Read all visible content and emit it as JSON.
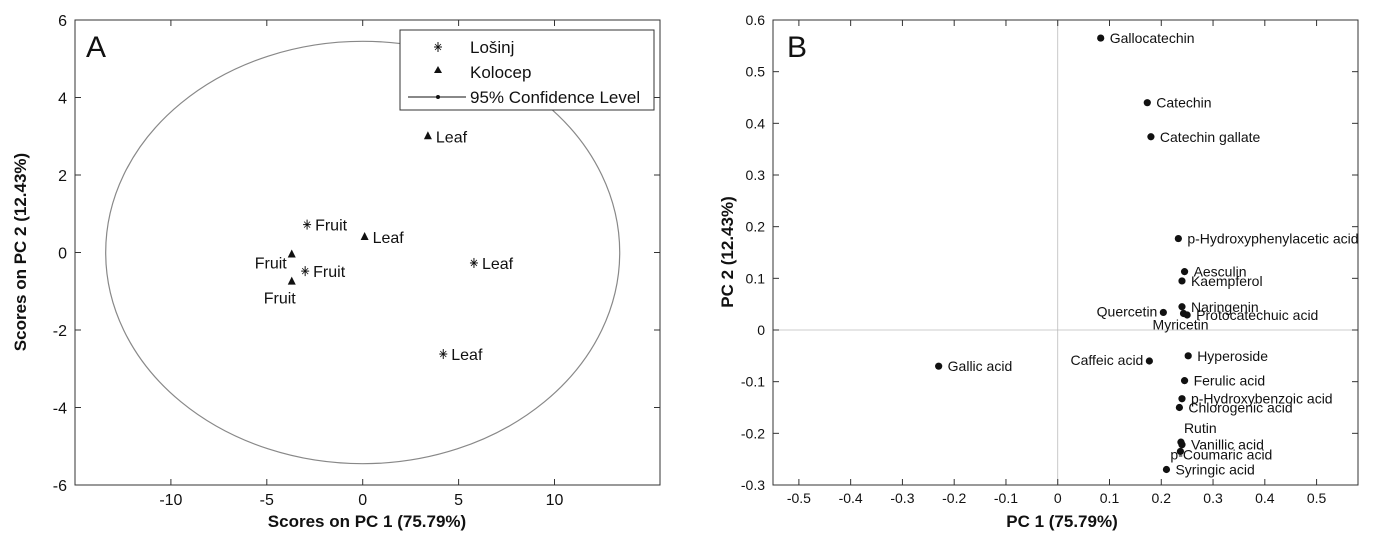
{
  "chart_data": [
    {
      "type": "scatter",
      "panel_label": "A",
      "xlabel": "Scores on PC 1 (75.79%)",
      "ylabel": "Scores on PC 2 (12.43%)",
      "xlim": [
        -15,
        15.5
      ],
      "ylim": [
        -6,
        6
      ],
      "xticks": [
        -10,
        -5,
        0,
        5,
        10
      ],
      "yticks": [
        -6,
        -4,
        -2,
        0,
        2,
        4,
        6
      ],
      "grid": false,
      "legend_position": "top-right",
      "legend": [
        {
          "label": "Lošinj",
          "marker": "star"
        },
        {
          "label": "Kolocep",
          "marker": "triangle"
        },
        {
          "label": "95% Confidence Level",
          "marker": "line-dot"
        }
      ],
      "series": [
        {
          "name": "Lošinj",
          "marker": "star",
          "points": [
            {
              "x": -2.9,
              "y": 0.72,
              "label": "Fruit",
              "label_pos": "right"
            },
            {
              "x": -3.0,
              "y": -0.48,
              "label": "Fruit",
              "label_pos": "right"
            },
            {
              "x": 5.8,
              "y": -0.27,
              "label": "Leaf",
              "label_pos": "right"
            },
            {
              "x": 4.2,
              "y": -2.62,
              "label": "Leaf",
              "label_pos": "right"
            }
          ]
        },
        {
          "name": "Kolocep",
          "marker": "triangle",
          "points": [
            {
              "x": 3.4,
              "y": 3.0,
              "label": "Leaf",
              "label_pos": "right"
            },
            {
              "x": 0.1,
              "y": 0.4,
              "label": "Leaf",
              "label_pos": "right"
            },
            {
              "x": -3.7,
              "y": -0.05,
              "label": "Fruit",
              "label_pos": "left"
            },
            {
              "x": -3.7,
              "y": -0.75,
              "label": "Fruit",
              "label_pos": "below"
            }
          ]
        }
      ],
      "ellipse": {
        "name": "95% Confidence Level",
        "center": [
          0,
          0
        ],
        "rx": 13.4,
        "ry": 5.45
      }
    },
    {
      "type": "scatter",
      "panel_label": "B",
      "xlabel": "PC 1 (75.79%)",
      "ylabel": "PC 2 (12.43%)",
      "xlim": [
        -0.55,
        0.58
      ],
      "ylim": [
        -0.3,
        0.6
      ],
      "xticks": [
        -0.5,
        -0.4,
        -0.3,
        -0.2,
        -0.1,
        0,
        0.1,
        0.2,
        0.3,
        0.4,
        0.5
      ],
      "yticks": [
        -0.3,
        -0.2,
        -0.1,
        0,
        0.1,
        0.2,
        0.3,
        0.4,
        0.5,
        0.6
      ],
      "grid": false,
      "zero_lines": true,
      "points": [
        {
          "x": 0.083,
          "y": 0.565,
          "label": "Gallocatechin",
          "label_pos": "right"
        },
        {
          "x": 0.173,
          "y": 0.44,
          "label": "Catechin",
          "label_pos": "right"
        },
        {
          "x": 0.18,
          "y": 0.374,
          "label": "Catechin gallate",
          "label_pos": "right"
        },
        {
          "x": 0.233,
          "y": 0.177,
          "label": "p-Hydroxyphenylacetic acid",
          "label_pos": "right"
        },
        {
          "x": 0.245,
          "y": 0.113,
          "label": "Aesculin",
          "label_pos": "right"
        },
        {
          "x": 0.24,
          "y": 0.095,
          "label": "Kaempferol",
          "label_pos": "right"
        },
        {
          "x": 0.24,
          "y": 0.045,
          "label": "Naringenin",
          "label_pos": "right"
        },
        {
          "x": 0.243,
          "y": 0.032,
          "label": "Myricetin",
          "label_pos": "below"
        },
        {
          "x": 0.25,
          "y": 0.029,
          "label": "Protocatechuic acid",
          "label_pos": "right"
        },
        {
          "x": 0.204,
          "y": 0.034,
          "label": "Quercetin",
          "label_pos": "left"
        },
        {
          "x": -0.23,
          "y": -0.07,
          "label": "Gallic  acid",
          "label_pos": "right"
        },
        {
          "x": 0.177,
          "y": -0.06,
          "label": "Caffeic acid",
          "label_pos": "left"
        },
        {
          "x": 0.252,
          "y": -0.05,
          "label": "Hyperoside",
          "label_pos": "right"
        },
        {
          "x": 0.245,
          "y": -0.098,
          "label": "Ferulic acid",
          "label_pos": "right"
        },
        {
          "x": 0.24,
          "y": -0.133,
          "label": "p-Hydroxybenzoic acid",
          "label_pos": "right"
        },
        {
          "x": 0.235,
          "y": -0.15,
          "label": "Chlorogenic acid",
          "label_pos": "right"
        },
        {
          "x": 0.238,
          "y": -0.217,
          "label": "Rutin",
          "label_pos": "above"
        },
        {
          "x": 0.24,
          "y": -0.222,
          "label": "Vanillic acid",
          "label_pos": "right"
        },
        {
          "x": 0.237,
          "y": -0.235,
          "label": "p-Coumaric acid",
          "label_pos": "below"
        },
        {
          "x": 0.21,
          "y": -0.27,
          "label": "Syringic acid",
          "label_pos": "right"
        }
      ]
    }
  ]
}
